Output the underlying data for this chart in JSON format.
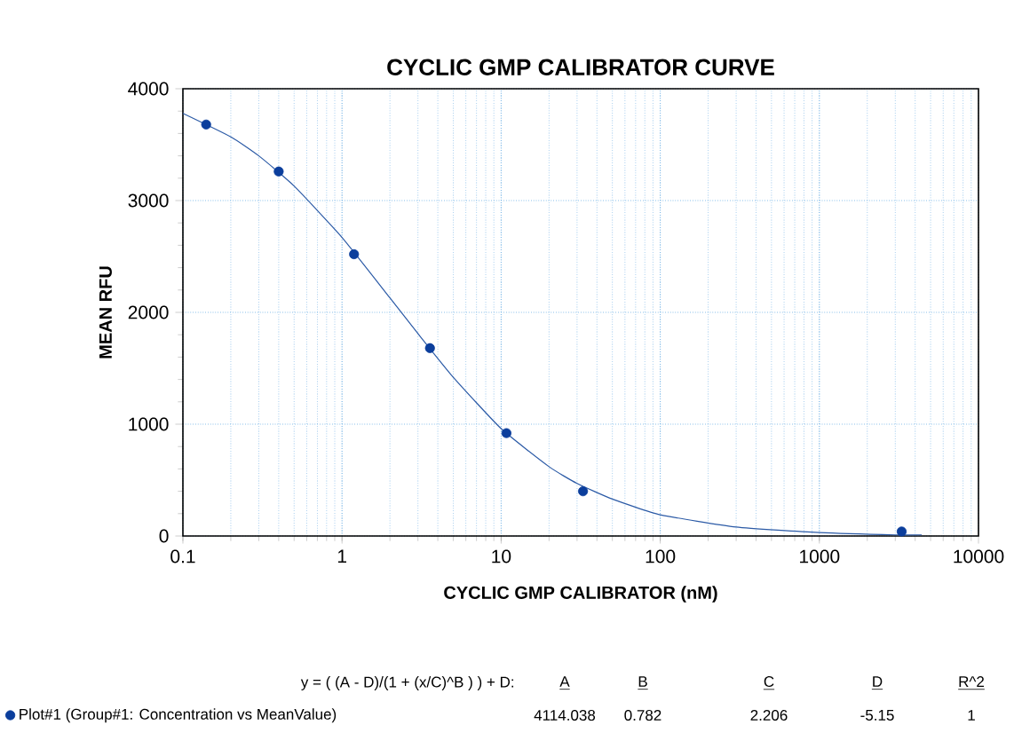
{
  "chart_data": {
    "type": "scatter",
    "title": "CYCLIC GMP CALIBRATOR CURVE",
    "xlabel": "CYCLIC GMP CALIBRATOR (nM)",
    "ylabel": "MEAN RFU",
    "log": "x",
    "xlim": [
      0.1,
      10000
    ],
    "xticks": [
      0.1,
      1,
      10,
      100,
      1000,
      10000
    ],
    "ylim": [
      0,
      4000
    ],
    "yticks": [
      0,
      1000,
      2000,
      3000,
      4000
    ],
    "grid": true,
    "legend": "bottom",
    "line_style": "solid",
    "series": [
      {
        "marker": "circle",
        "name": "Plot#1 (Group#1: Concentration vs MeanValue)",
        "color": "#0b3e9c",
        "x": [
          0.14,
          0.4,
          1.19,
          3.57,
          10.8,
          32.7,
          3290
        ],
        "values": [
          3680,
          3260,
          2520,
          1680,
          920,
          400,
          40
        ]
      },
      {
        "type": "line",
        "marker": "none",
        "color": "#2b5aa6",
        "x": [
          0.1,
          0.2,
          0.3,
          0.5,
          1,
          2,
          3,
          5,
          10,
          20,
          30,
          50,
          100,
          300,
          1000,
          3000,
          4400
        ],
        "values": [
          3780,
          3570,
          3400,
          3130,
          2670,
          2130,
          1810,
          1420,
          960,
          620,
          470,
          330,
          190,
          80,
          30,
          10,
          10
        ]
      }
    ],
    "annotations": [
      "y = ( (A - D)/(1 + (x/C)^B ) ) + D:",
      "A",
      "B",
      "C",
      "D",
      "R^2",
      "4114.038",
      "0.782",
      "2.206",
      "-5.15",
      "1"
    ]
  }
}
